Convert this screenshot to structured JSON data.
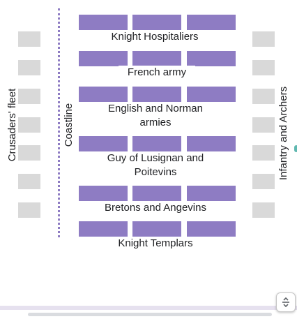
{
  "colors": {
    "unit_block": "#8e7cc3",
    "flank_block": "#d9d9d9",
    "coastline": "#8e7cc3"
  },
  "divisions": [
    {
      "name": "Knight Hospitaliers"
    },
    {
      "name": "French army"
    },
    {
      "name": "English and Norman armies"
    },
    {
      "name": "Guy of Lusignan and Poitevins"
    },
    {
      "name": "Bretons and Angevins"
    },
    {
      "name": "Knight Templars"
    }
  ],
  "labels": {
    "fleet": "Crusaders' fleet",
    "coastline": "Coastline",
    "infantry": "Infantry and Archers"
  },
  "controls": {
    "expand_icon": "expand-collapse-icon"
  }
}
